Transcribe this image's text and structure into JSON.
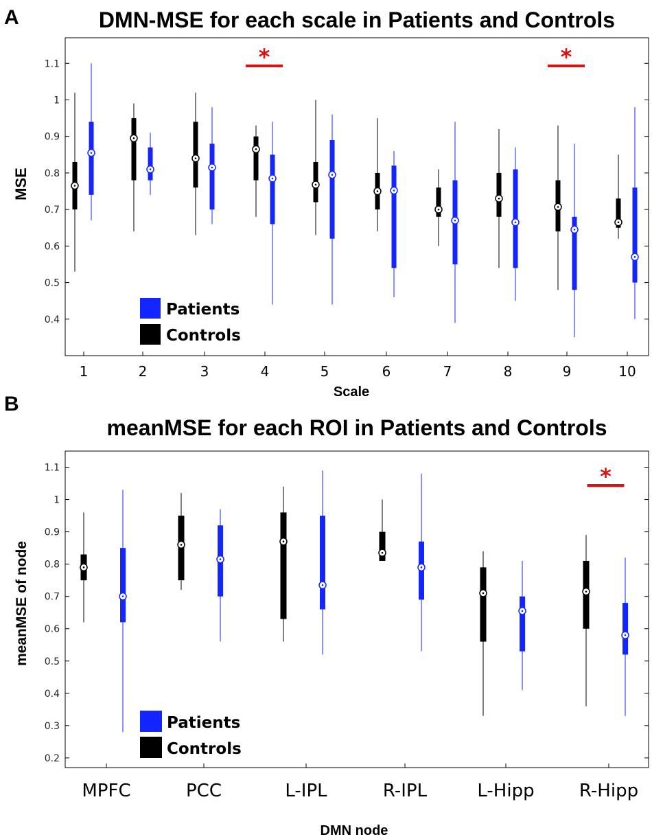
{
  "colors": {
    "patients": "#1426ff",
    "controls": "#000000",
    "significance": "#e01010"
  },
  "legend": {
    "patients": "Patients",
    "controls": "Controls"
  },
  "chart_data": [
    {
      "type": "boxplot",
      "panel_label": "A",
      "title": "DMN-MSE for each scale in Patients and Controls",
      "xlabel": "Scale",
      "ylabel": "MSE",
      "ylim": [
        0.3,
        1.17
      ],
      "yticks": [
        0.4,
        0.5,
        0.6,
        0.7,
        0.8,
        0.9,
        1,
        1.1
      ],
      "ytick_labels": [
        "0.4",
        "0.5",
        "0.6",
        "0.7",
        "0.8",
        "0.9",
        "1",
        "1.1"
      ],
      "categories": [
        "1",
        "2",
        "3",
        "4",
        "5",
        "6",
        "7",
        "8",
        "9",
        "10"
      ],
      "significance_marker": "*",
      "significant_categories": [
        "4",
        "9"
      ],
      "series": [
        {
          "name": "Controls",
          "whisker_low": [
            0.53,
            0.64,
            0.63,
            0.68,
            0.63,
            0.64,
            0.6,
            0.54,
            0.48,
            0.62
          ],
          "q1": [
            0.7,
            0.78,
            0.76,
            0.78,
            0.72,
            0.7,
            0.68,
            0.68,
            0.64,
            0.65
          ],
          "median": [
            0.765,
            0.895,
            0.84,
            0.865,
            0.768,
            0.75,
            0.7,
            0.73,
            0.707,
            0.665
          ],
          "q3": [
            0.83,
            0.95,
            0.94,
            0.9,
            0.83,
            0.8,
            0.76,
            0.8,
            0.78,
            0.73
          ],
          "whisker_high": [
            1.02,
            0.99,
            1.02,
            0.93,
            1.0,
            0.95,
            0.81,
            0.92,
            0.93,
            0.85
          ]
        },
        {
          "name": "Patients",
          "whisker_low": [
            0.67,
            0.74,
            0.66,
            0.44,
            0.44,
            0.46,
            0.39,
            0.45,
            0.35,
            0.4
          ],
          "q1": [
            0.74,
            0.78,
            0.7,
            0.66,
            0.62,
            0.54,
            0.55,
            0.54,
            0.48,
            0.5
          ],
          "median": [
            0.855,
            0.81,
            0.815,
            0.785,
            0.795,
            0.752,
            0.67,
            0.665,
            0.645,
            0.57
          ],
          "q3": [
            0.94,
            0.87,
            0.88,
            0.85,
            0.89,
            0.82,
            0.78,
            0.81,
            0.68,
            0.76
          ],
          "whisker_high": [
            1.1,
            0.91,
            0.98,
            0.94,
            0.96,
            0.86,
            0.94,
            0.87,
            0.88,
            0.98
          ]
        }
      ]
    },
    {
      "type": "boxplot",
      "panel_label": "B",
      "title": "meanMSE for each ROI in Patients and Controls",
      "xlabel": "DMN node",
      "ylabel": "meanMSE of node",
      "ylim": [
        0.17,
        1.15
      ],
      "yticks": [
        0.2,
        0.3,
        0.4,
        0.5,
        0.6,
        0.7,
        0.8,
        0.9,
        1,
        1.1
      ],
      "ytick_labels": [
        "0.2",
        "0.3",
        "0.4",
        "0.5",
        "0.6",
        "0.7",
        "0.8",
        "0.9",
        "1",
        "1.1"
      ],
      "categories": [
        "MPFC",
        "PCC",
        "L-IPL",
        "R-IPL",
        "L-Hipp",
        "R-Hipp"
      ],
      "significance_marker": "*",
      "significant_categories": [
        "R-Hipp"
      ],
      "series": [
        {
          "name": "Controls",
          "whisker_low": [
            0.62,
            0.72,
            0.56,
            0.81,
            0.33,
            0.36
          ],
          "q1": [
            0.75,
            0.75,
            0.63,
            0.81,
            0.56,
            0.6
          ],
          "median": [
            0.79,
            0.86,
            0.87,
            0.835,
            0.71,
            0.715
          ],
          "q3": [
            0.83,
            0.95,
            0.96,
            0.9,
            0.79,
            0.81
          ],
          "whisker_high": [
            0.96,
            1.02,
            1.04,
            1.0,
            0.84,
            0.89
          ]
        },
        {
          "name": "Patients",
          "whisker_low": [
            0.28,
            0.56,
            0.52,
            0.53,
            0.41,
            0.33
          ],
          "q1": [
            0.62,
            0.7,
            0.66,
            0.69,
            0.53,
            0.52
          ],
          "median": [
            0.7,
            0.815,
            0.735,
            0.79,
            0.655,
            0.58
          ],
          "q3": [
            0.85,
            0.92,
            0.95,
            0.87,
            0.7,
            0.68
          ],
          "whisker_high": [
            1.03,
            0.97,
            1.09,
            1.08,
            0.81,
            0.82
          ]
        }
      ]
    }
  ]
}
